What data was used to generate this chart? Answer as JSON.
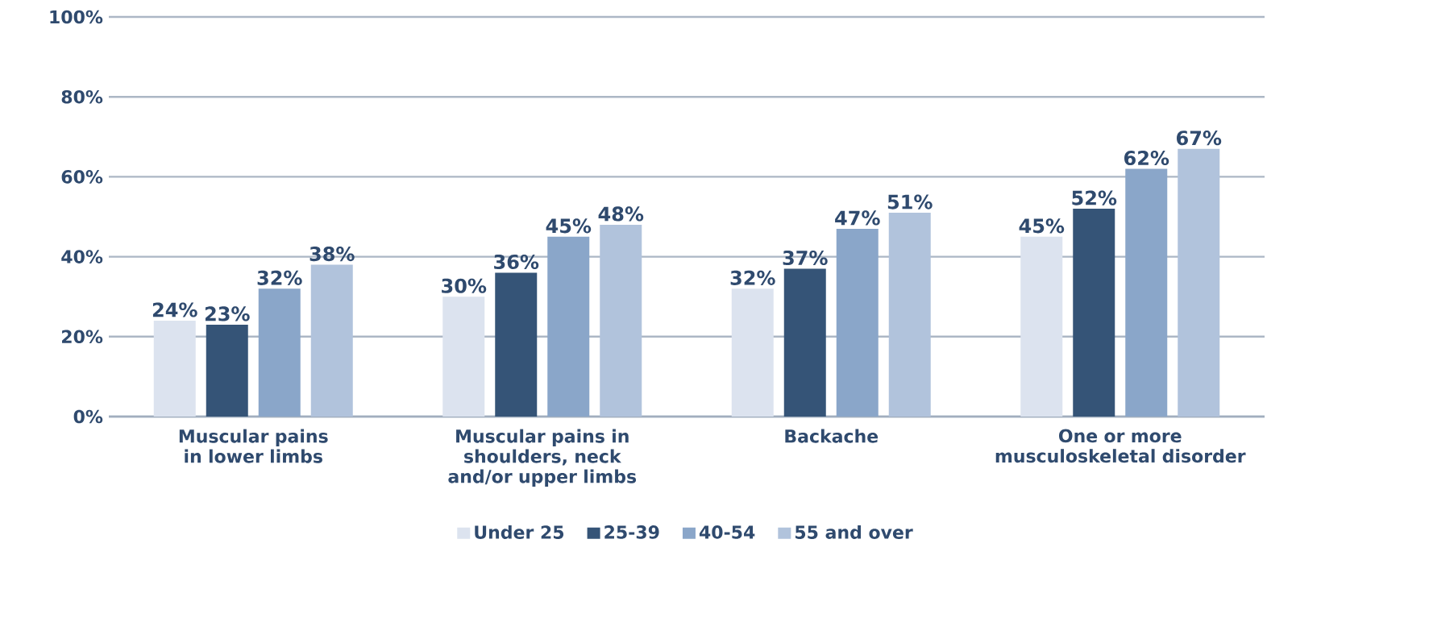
{
  "chart_data": {
    "type": "bar",
    "categories": [
      "Muscular pains in lower limbs",
      "Muscular pains in shoulders, neck and/or upper limbs",
      "Backache",
      "One or more musculoskeletal disorder"
    ],
    "series": [
      {
        "name": "Under 25",
        "color": "#dce3ef",
        "values": [
          24,
          30,
          32,
          45
        ],
        "value_labels": [
          "24%",
          "30%",
          "32%",
          "45%"
        ]
      },
      {
        "name": "25-39",
        "color": "#355477",
        "values": [
          23,
          36,
          37,
          52
        ],
        "value_labels": [
          "23%",
          "36%",
          "37%",
          "52%"
        ]
      },
      {
        "name": "40-54",
        "color": "#8aa6c9",
        "values": [
          32,
          45,
          47,
          62
        ],
        "value_labels": [
          "32%",
          "45%",
          "47%",
          "62%"
        ]
      },
      {
        "name": "55 and over",
        "color": "#b1c3dc",
        "values": [
          38,
          48,
          51,
          67
        ],
        "value_labels": [
          "38%",
          "48%",
          "51%",
          "67%"
        ]
      }
    ],
    "ylim": [
      0,
      100
    ],
    "yticks": [
      {
        "value": 0,
        "label": "0%"
      },
      {
        "value": 20,
        "label": "20%"
      },
      {
        "value": 40,
        "label": "40%"
      },
      {
        "value": 60,
        "label": "60%"
      },
      {
        "value": 80,
        "label": "80%"
      },
      {
        "value": 100,
        "label": "100%"
      }
    ],
    "grid": "y",
    "legend": "bottom"
  }
}
